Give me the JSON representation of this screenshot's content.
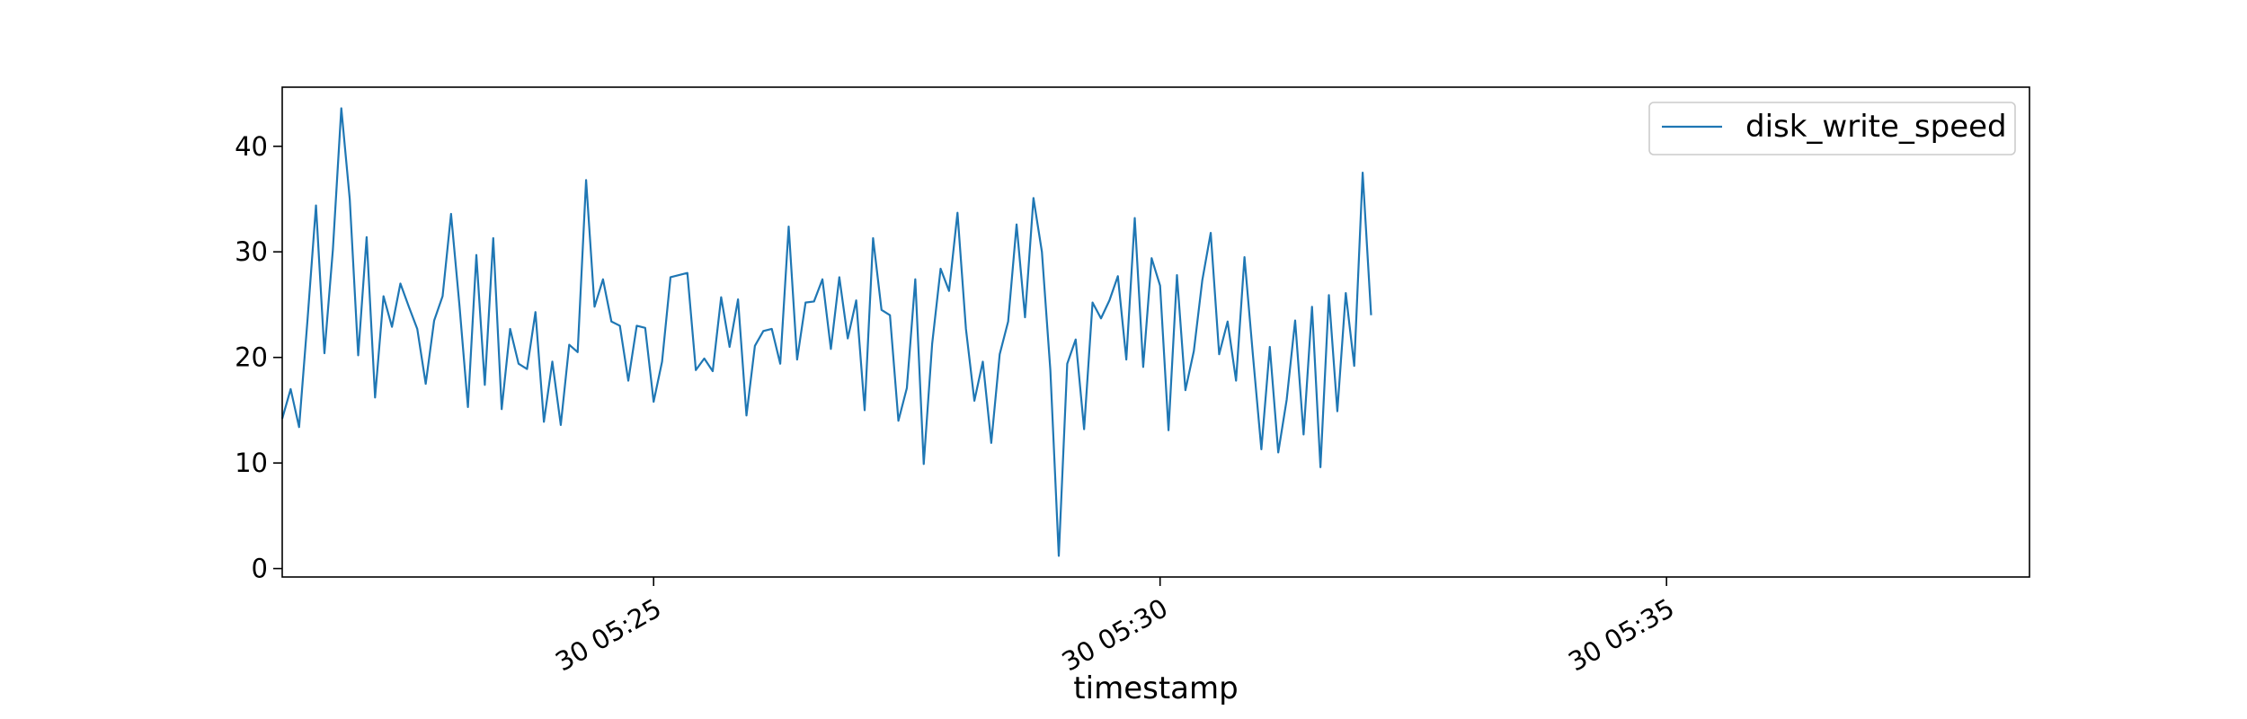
{
  "chart_data": {
    "type": "line",
    "title": "",
    "xlabel": "timestamp",
    "ylabel": "",
    "x_axis_type": "datetime",
    "x_start": "05:21:20",
    "x_interval_seconds": 5,
    "xlim": [
      "05:21:20",
      "05:38:35"
    ],
    "x_ticks": [
      {
        "label": "30 05:25",
        "time": "05:25:00"
      },
      {
        "label": "30 05:30",
        "time": "05:30:00"
      },
      {
        "label": "30 05:35",
        "time": "05:35:00"
      }
    ],
    "ylim": [
      -0.8,
      45.6
    ],
    "y_ticks": [
      0,
      10,
      20,
      30,
      40
    ],
    "grid": false,
    "legend": {
      "position": "top-right",
      "entries": [
        "disk_write_speed"
      ]
    },
    "colors": {
      "series": "#1f77b4"
    },
    "series": [
      {
        "name": "disk_write_speed",
        "values": [
          14.2,
          17.0,
          13.4,
          23.6,
          34.4,
          20.4,
          30.2,
          43.6,
          35.0,
          20.2,
          31.4,
          16.2,
          25.8,
          22.9,
          27.0,
          24.8,
          22.7,
          17.5,
          23.5,
          25.8,
          33.6,
          24.9,
          15.3,
          29.7,
          17.4,
          31.3,
          15.1,
          22.7,
          19.4,
          18.9,
          24.3,
          13.9,
          19.6,
          13.6,
          21.2,
          20.5,
          36.8,
          24.8,
          27.4,
          23.4,
          23.0,
          17.8,
          23.0,
          22.8,
          15.8,
          19.6,
          27.6,
          27.8,
          28.0,
          18.8,
          19.9,
          18.7,
          25.7,
          21.0,
          25.5,
          14.5,
          21.1,
          22.5,
          22.7,
          19.4,
          32.4,
          19.8,
          25.2,
          25.3,
          27.4,
          20.8,
          27.6,
          21.8,
          25.4,
          15.0,
          31.3,
          24.5,
          24.0,
          14.0,
          17.1,
          27.4,
          9.9,
          21.3,
          28.4,
          26.3,
          33.7,
          22.7,
          15.9,
          19.6,
          11.9,
          20.3,
          23.4,
          32.6,
          23.8,
          35.1,
          30.0,
          18.8,
          1.2,
          19.4,
          21.7,
          13.2,
          25.2,
          23.7,
          25.4,
          27.7,
          19.8,
          33.2,
          19.1,
          29.4,
          26.8,
          13.1,
          27.8,
          16.9,
          20.6,
          27.3,
          31.8,
          20.3,
          23.4,
          17.8,
          29.5,
          20.2,
          11.3,
          21.0,
          11.0,
          16.0,
          23.5,
          12.7,
          24.8,
          9.6,
          25.9,
          14.9,
          26.1,
          19.2,
          37.5,
          24.0
        ]
      }
    ]
  }
}
